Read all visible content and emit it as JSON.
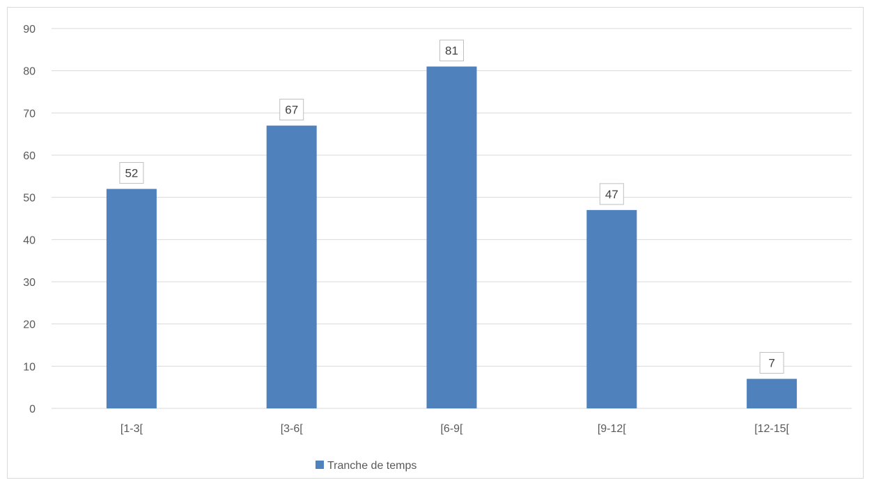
{
  "chart_data": {
    "type": "bar",
    "categories": [
      "[1-3[",
      "[3-6[",
      "[6-9[",
      "[9-12[",
      "[12-15["
    ],
    "series": [
      {
        "name": "Tranche de temps",
        "values": [
          52,
          67,
          81,
          47,
          7
        ]
      }
    ],
    "title": "",
    "xlabel": "",
    "ylabel": "",
    "ylim": [
      0,
      90
    ],
    "yticks": [
      0,
      10,
      20,
      30,
      40,
      50,
      60,
      70,
      80,
      90
    ],
    "grid": true,
    "legend": "bottom",
    "data_labels": true,
    "colors": {
      "bar": "#4f81bd",
      "grid": "#d9d9d9",
      "label_border": "#bfbfbf"
    }
  }
}
